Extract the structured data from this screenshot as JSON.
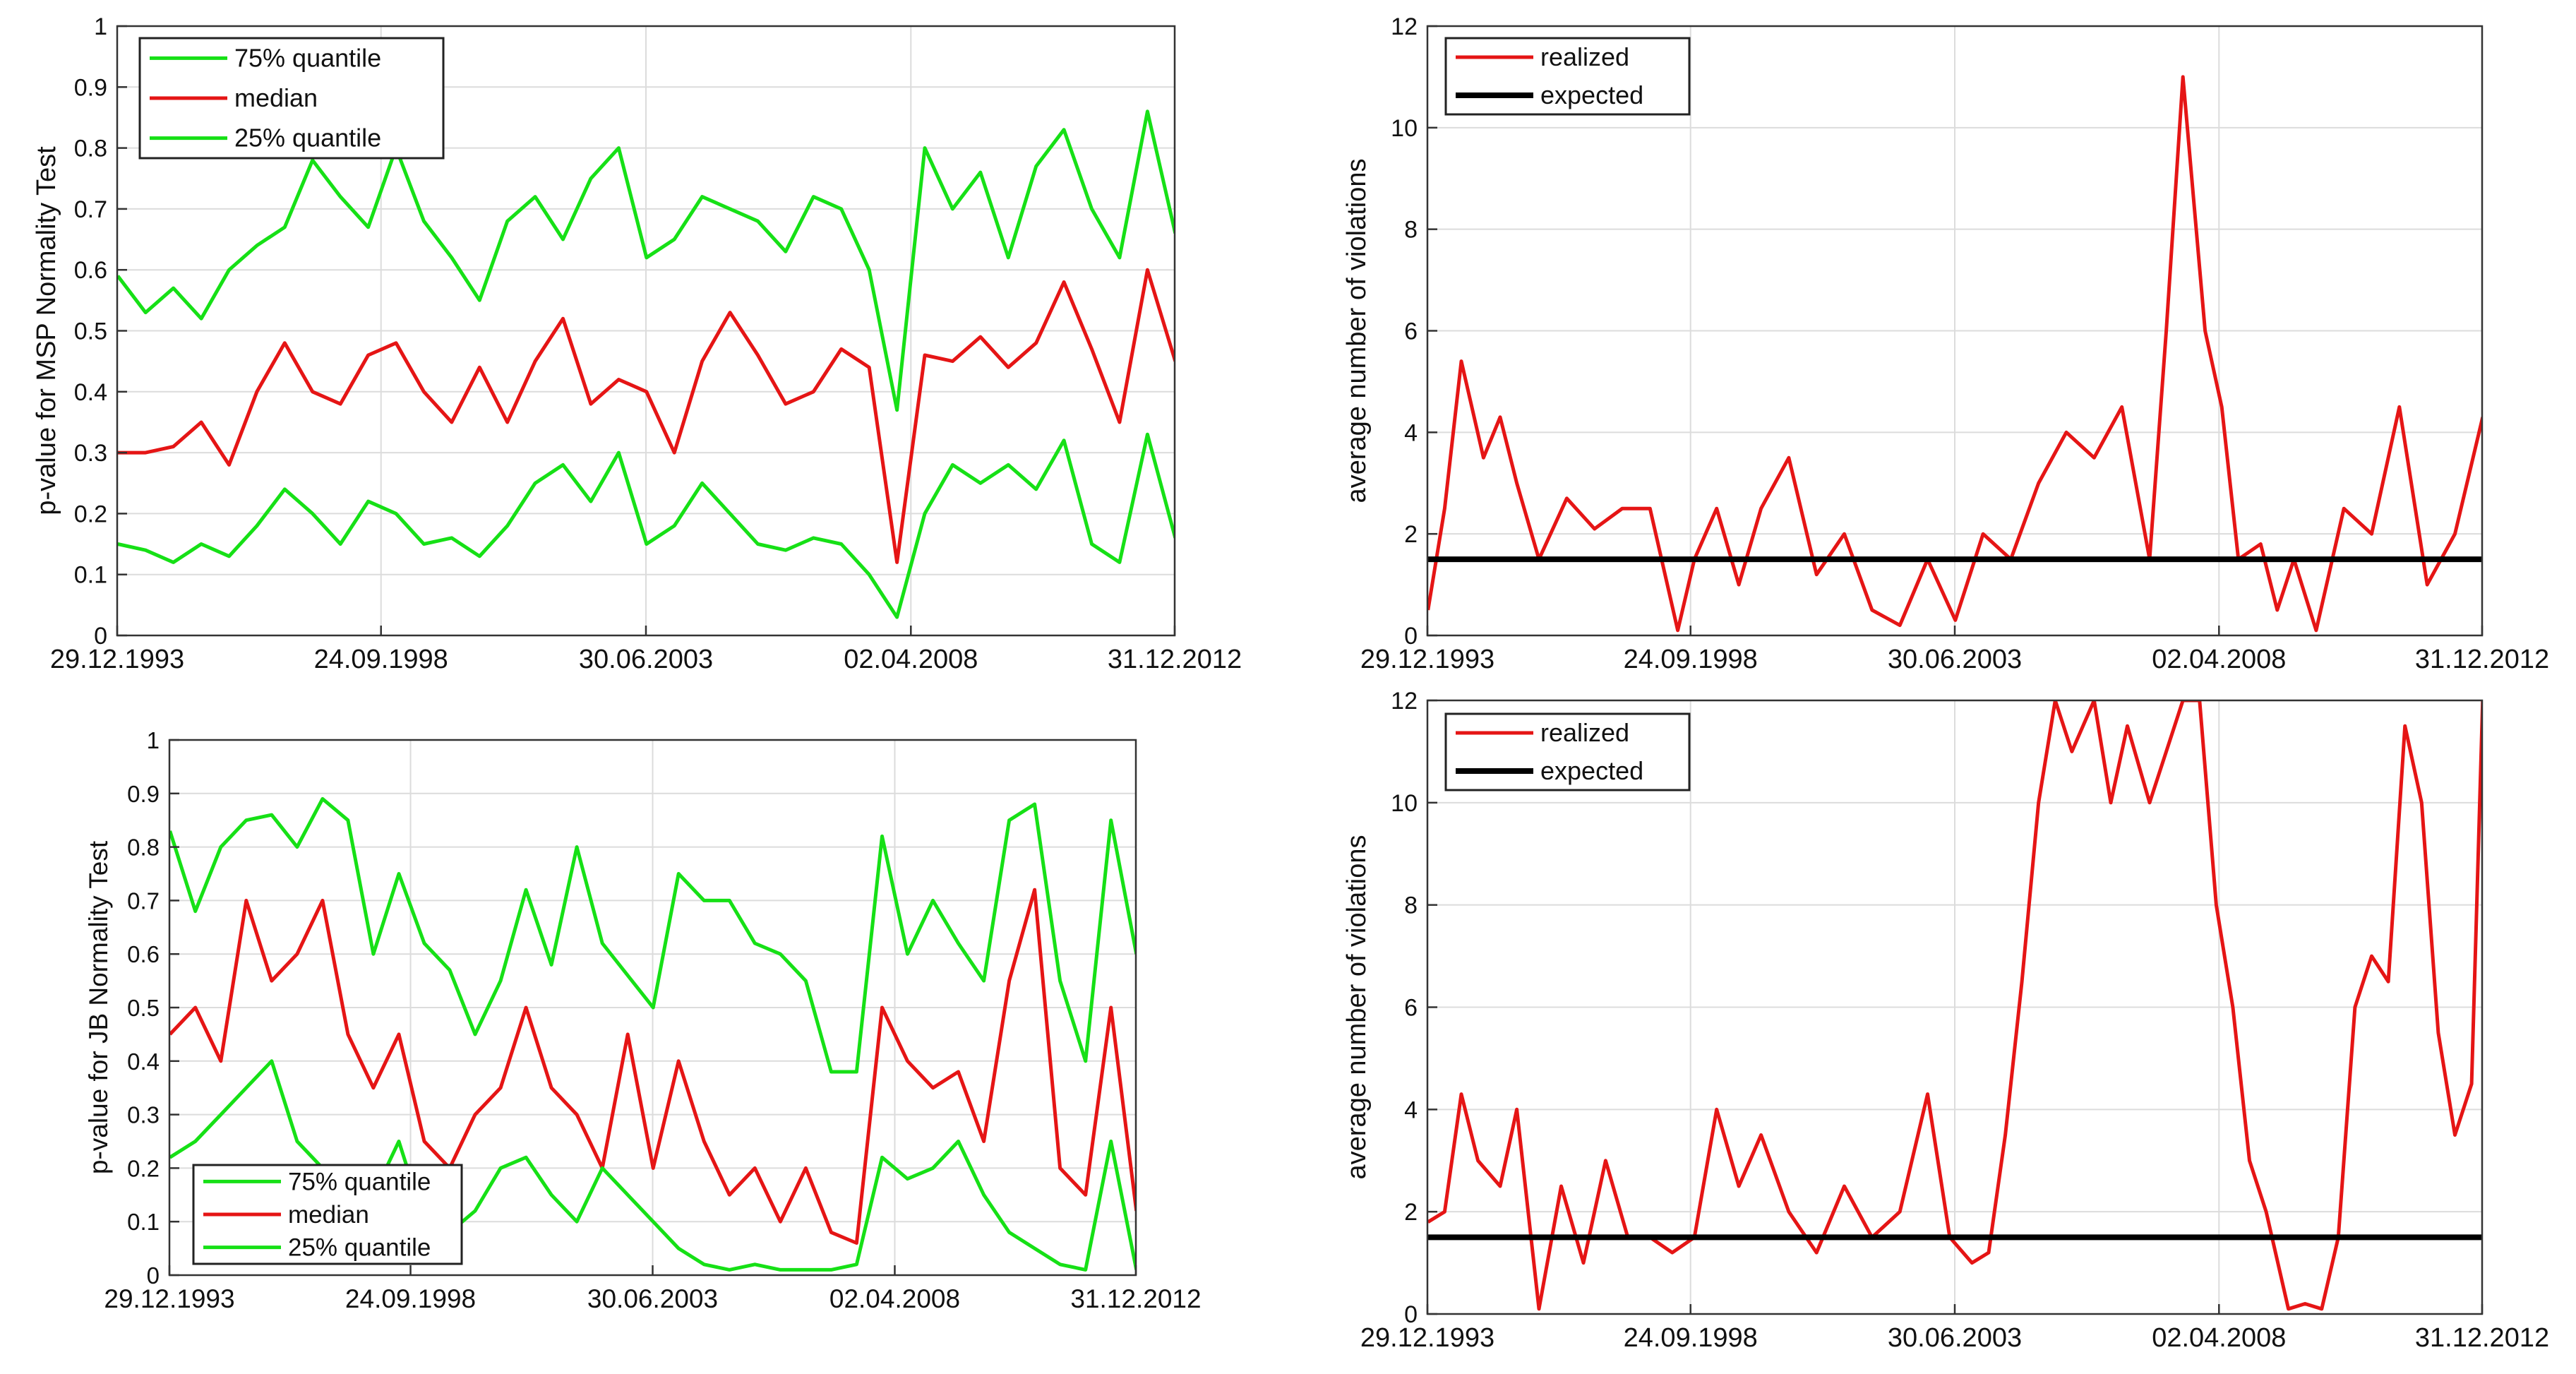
{
  "chart_data": [
    {
      "type": "line",
      "title": "",
      "xlabel": "",
      "ylabel": "p-value for MSP Normality Test",
      "ylim": [
        0,
        1
      ],
      "yticks": [
        0,
        0.1,
        0.2,
        0.3,
        0.4,
        0.5,
        0.6,
        0.7,
        0.8,
        0.9,
        1
      ],
      "ytick_labels": [
        "0",
        "0.1",
        "0.2",
        "0.3",
        "0.4",
        "0.5",
        "0.6",
        "0.7",
        "0.8",
        "0.9",
        "1"
      ],
      "xlim": [
        1993.99,
        2012.99
      ],
      "xticks": [
        1993.99,
        1998.73,
        2003.49,
        2008.25,
        2012.99
      ],
      "xtick_labels": [
        "29.12.1993",
        "24.09.1998",
        "30.06.2003",
        "02.04.2008",
        "31.12.2012"
      ],
      "legend_position": "top-left",
      "series": [
        {
          "name": "75% quantile",
          "color": "#16e016",
          "x": [
            1994.0,
            1994.5,
            1995.0,
            1995.5,
            1996.0,
            1996.5,
            1997.0,
            1997.5,
            1998.0,
            1998.5,
            1999.0,
            1999.5,
            2000.0,
            2000.5,
            2001.0,
            2001.5,
            2002.0,
            2002.5,
            2003.0,
            2003.5,
            2004.0,
            2004.5,
            2005.0,
            2005.5,
            2006.0,
            2006.5,
            2007.0,
            2007.5,
            2008.0,
            2008.5,
            2009.0,
            2009.5,
            2010.0,
            2010.5,
            2011.0,
            2011.5,
            2012.0,
            2012.5,
            2013.0
          ],
          "values": [
            0.59,
            0.53,
            0.57,
            0.52,
            0.6,
            0.64,
            0.67,
            0.78,
            0.72,
            0.67,
            0.8,
            0.68,
            0.62,
            0.55,
            0.68,
            0.72,
            0.65,
            0.75,
            0.8,
            0.62,
            0.65,
            0.72,
            0.7,
            0.68,
            0.63,
            0.72,
            0.7,
            0.6,
            0.37,
            0.8,
            0.7,
            0.76,
            0.62,
            0.77,
            0.83,
            0.7,
            0.62,
            0.86,
            0.66
          ]
        },
        {
          "name": "median",
          "color": "#e51515",
          "x": [
            1994.0,
            1994.5,
            1995.0,
            1995.5,
            1996.0,
            1996.5,
            1997.0,
            1997.5,
            1998.0,
            1998.5,
            1999.0,
            1999.5,
            2000.0,
            2000.5,
            2001.0,
            2001.5,
            2002.0,
            2002.5,
            2003.0,
            2003.5,
            2004.0,
            2004.5,
            2005.0,
            2005.5,
            2006.0,
            2006.5,
            2007.0,
            2007.5,
            2008.0,
            2008.5,
            2009.0,
            2009.5,
            2010.0,
            2010.5,
            2011.0,
            2011.5,
            2012.0,
            2012.5,
            2013.0
          ],
          "values": [
            0.3,
            0.3,
            0.31,
            0.35,
            0.28,
            0.4,
            0.48,
            0.4,
            0.38,
            0.46,
            0.48,
            0.4,
            0.35,
            0.44,
            0.35,
            0.45,
            0.52,
            0.38,
            0.42,
            0.4,
            0.3,
            0.45,
            0.53,
            0.46,
            0.38,
            0.4,
            0.47,
            0.44,
            0.12,
            0.46,
            0.45,
            0.49,
            0.44,
            0.48,
            0.58,
            0.47,
            0.35,
            0.6,
            0.45
          ]
        },
        {
          "name": "25% quantile",
          "color": "#16e016",
          "x": [
            1994.0,
            1994.5,
            1995.0,
            1995.5,
            1996.0,
            1996.5,
            1997.0,
            1997.5,
            1998.0,
            1998.5,
            1999.0,
            1999.5,
            2000.0,
            2000.5,
            2001.0,
            2001.5,
            2002.0,
            2002.5,
            2003.0,
            2003.5,
            2004.0,
            2004.5,
            2005.0,
            2005.5,
            2006.0,
            2006.5,
            2007.0,
            2007.5,
            2008.0,
            2008.5,
            2009.0,
            2009.5,
            2010.0,
            2010.5,
            2011.0,
            2011.5,
            2012.0,
            2012.5,
            2013.0
          ],
          "values": [
            0.15,
            0.14,
            0.12,
            0.15,
            0.13,
            0.18,
            0.24,
            0.2,
            0.15,
            0.22,
            0.2,
            0.15,
            0.16,
            0.13,
            0.18,
            0.25,
            0.28,
            0.22,
            0.3,
            0.15,
            0.18,
            0.25,
            0.2,
            0.15,
            0.14,
            0.16,
            0.15,
            0.1,
            0.03,
            0.2,
            0.28,
            0.25,
            0.28,
            0.24,
            0.32,
            0.15,
            0.12,
            0.33,
            0.16
          ]
        }
      ]
    },
    {
      "type": "line",
      "title": "",
      "xlabel": "",
      "ylabel": "average number of violations",
      "ylim": [
        0,
        12
      ],
      "yticks": [
        0,
        2,
        4,
        6,
        8,
        10,
        12
      ],
      "ytick_labels": [
        "0",
        "2",
        "4",
        "6",
        "8",
        "10",
        "12"
      ],
      "xlim": [
        1993.99,
        2012.99
      ],
      "xticks": [
        1993.99,
        1998.73,
        2003.49,
        2008.25,
        2012.99
      ],
      "xtick_labels": [
        "29.12.1993",
        "24.09.1998",
        "30.06.2003",
        "02.04.2008",
        "31.12.2012"
      ],
      "legend_position": "top-left",
      "series": [
        {
          "name": "realized",
          "color": "#e51515",
          "x": [
            1994.0,
            1994.3,
            1994.6,
            1995.0,
            1995.3,
            1995.6,
            1996.0,
            1996.5,
            1997.0,
            1997.5,
            1998.0,
            1998.5,
            1998.8,
            1999.2,
            1999.6,
            2000.0,
            2000.5,
            2001.0,
            2001.5,
            2002.0,
            2002.5,
            2003.0,
            2003.5,
            2004.0,
            2004.5,
            2005.0,
            2005.5,
            2006.0,
            2006.5,
            2007.0,
            2007.3,
            2007.6,
            2008.0,
            2008.3,
            2008.6,
            2009.0,
            2009.3,
            2009.6,
            2010.0,
            2010.5,
            2011.0,
            2011.5,
            2012.0,
            2012.5,
            2013.0
          ],
          "values": [
            0.5,
            2.5,
            5.4,
            3.5,
            4.3,
            3.0,
            1.5,
            2.7,
            2.1,
            2.5,
            2.5,
            0.1,
            1.5,
            2.5,
            1.0,
            2.5,
            3.5,
            1.2,
            2.0,
            0.5,
            0.2,
            1.5,
            0.3,
            2.0,
            1.5,
            3.0,
            4.0,
            3.5,
            4.5,
            1.5,
            6.0,
            11.0,
            6.0,
            4.5,
            1.5,
            1.8,
            0.5,
            1.5,
            0.1,
            2.5,
            2.0,
            4.5,
            1.0,
            2.0,
            4.3
          ]
        },
        {
          "name": "expected",
          "color": "#000000",
          "x": [
            1994.0,
            2013.0
          ],
          "values": [
            1.5,
            1.5
          ]
        }
      ]
    },
    {
      "type": "line",
      "title": "",
      "xlabel": "",
      "ylabel": "p-value for JB Normality Test",
      "ylim": [
        0,
        1
      ],
      "yticks": [
        0,
        0.1,
        0.2,
        0.3,
        0.4,
        0.5,
        0.6,
        0.7,
        0.8,
        0.9,
        1
      ],
      "ytick_labels": [
        "0",
        "0.1",
        "0.2",
        "0.3",
        "0.4",
        "0.5",
        "0.6",
        "0.7",
        "0.8",
        "0.9",
        "1"
      ],
      "xlim": [
        1993.99,
        2012.99
      ],
      "xticks": [
        1993.99,
        1998.73,
        2003.49,
        2008.25,
        2012.99
      ],
      "xtick_labels": [
        "29.12.1993",
        "24.09.1998",
        "30.06.2003",
        "02.04.2008",
        "31.12.2012"
      ],
      "legend_position": "bottom-left",
      "series": [
        {
          "name": "75% quantile",
          "color": "#16e016",
          "x": [
            1994.0,
            1994.5,
            1995.0,
            1995.5,
            1996.0,
            1996.5,
            1997.0,
            1997.5,
            1998.0,
            1998.5,
            1999.0,
            1999.5,
            2000.0,
            2000.5,
            2001.0,
            2001.5,
            2002.0,
            2002.5,
            2003.0,
            2003.5,
            2004.0,
            2004.5,
            2005.0,
            2005.5,
            2006.0,
            2006.5,
            2007.0,
            2007.5,
            2008.0,
            2008.5,
            2009.0,
            2009.5,
            2010.0,
            2010.5,
            2011.0,
            2011.5,
            2012.0,
            2012.5,
            2013.0
          ],
          "values": [
            0.83,
            0.68,
            0.8,
            0.85,
            0.86,
            0.8,
            0.89,
            0.85,
            0.6,
            0.75,
            0.62,
            0.57,
            0.45,
            0.55,
            0.72,
            0.58,
            0.8,
            0.62,
            0.56,
            0.5,
            0.75,
            0.7,
            0.7,
            0.62,
            0.6,
            0.55,
            0.38,
            0.38,
            0.82,
            0.6,
            0.7,
            0.62,
            0.55,
            0.85,
            0.88,
            0.55,
            0.4,
            0.85,
            0.6
          ]
        },
        {
          "name": "median",
          "color": "#e51515",
          "x": [
            1994.0,
            1994.5,
            1995.0,
            1995.5,
            1996.0,
            1996.5,
            1997.0,
            1997.5,
            1998.0,
            1998.5,
            1999.0,
            1999.5,
            2000.0,
            2000.5,
            2001.0,
            2001.5,
            2002.0,
            2002.5,
            2003.0,
            2003.5,
            2004.0,
            2004.5,
            2005.0,
            2005.5,
            2006.0,
            2006.5,
            2007.0,
            2007.5,
            2008.0,
            2008.5,
            2009.0,
            2009.5,
            2010.0,
            2010.5,
            2011.0,
            2011.5,
            2012.0,
            2012.5,
            2013.0
          ],
          "values": [
            0.45,
            0.5,
            0.4,
            0.7,
            0.55,
            0.6,
            0.7,
            0.45,
            0.35,
            0.45,
            0.25,
            0.2,
            0.3,
            0.35,
            0.5,
            0.35,
            0.3,
            0.2,
            0.45,
            0.2,
            0.4,
            0.25,
            0.15,
            0.2,
            0.1,
            0.2,
            0.08,
            0.06,
            0.5,
            0.4,
            0.35,
            0.38,
            0.25,
            0.55,
            0.72,
            0.2,
            0.15,
            0.5,
            0.12
          ]
        },
        {
          "name": "25% quantile",
          "color": "#16e016",
          "x": [
            1994.0,
            1994.5,
            1995.0,
            1995.5,
            1996.0,
            1996.5,
            1997.0,
            1997.5,
            1998.0,
            1998.5,
            1999.0,
            1999.5,
            2000.0,
            2000.5,
            2001.0,
            2001.5,
            2002.0,
            2002.5,
            2003.0,
            2003.5,
            2004.0,
            2004.5,
            2005.0,
            2005.5,
            2006.0,
            2006.5,
            2007.0,
            2007.5,
            2008.0,
            2008.5,
            2009.0,
            2009.5,
            2010.0,
            2010.5,
            2011.0,
            2011.5,
            2012.0,
            2012.5,
            2013.0
          ],
          "values": [
            0.22,
            0.25,
            0.3,
            0.35,
            0.4,
            0.25,
            0.2,
            0.2,
            0.15,
            0.25,
            0.1,
            0.08,
            0.12,
            0.2,
            0.22,
            0.15,
            0.1,
            0.2,
            0.15,
            0.1,
            0.05,
            0.02,
            0.01,
            0.02,
            0.01,
            0.01,
            0.01,
            0.02,
            0.22,
            0.18,
            0.2,
            0.25,
            0.15,
            0.08,
            0.05,
            0.02,
            0.01,
            0.25,
            0.01
          ]
        }
      ]
    },
    {
      "type": "line",
      "title": "",
      "xlabel": "",
      "ylabel": "average number of violations",
      "ylim": [
        0,
        12
      ],
      "yticks": [
        0,
        2,
        4,
        6,
        8,
        10,
        12
      ],
      "ytick_labels": [
        "0",
        "2",
        "4",
        "6",
        "8",
        "10",
        "12"
      ],
      "xlim": [
        1993.99,
        2012.99
      ],
      "xticks": [
        1993.99,
        1998.73,
        2003.49,
        2008.25,
        2012.99
      ],
      "xtick_labels": [
        "29.12.1993",
        "24.09.1998",
        "30.06.2003",
        "02.04.2008",
        "31.12.2012"
      ],
      "legend_position": "top-left",
      "series": [
        {
          "name": "realized",
          "color": "#e51515",
          "x": [
            1994.0,
            1994.3,
            1994.6,
            1994.9,
            1995.3,
            1995.6,
            1996.0,
            1996.4,
            1996.8,
            1997.2,
            1997.6,
            1998.0,
            1998.4,
            1998.8,
            1999.2,
            1999.6,
            2000.0,
            2000.5,
            2001.0,
            2001.5,
            2002.0,
            2002.5,
            2003.0,
            2003.4,
            2003.8,
            2004.1,
            2004.4,
            2004.7,
            2005.0,
            2005.3,
            2005.6,
            2006.0,
            2006.3,
            2006.6,
            2007.0,
            2007.3,
            2007.6,
            2007.9,
            2008.2,
            2008.5,
            2008.8,
            2009.1,
            2009.5,
            2009.8,
            2010.1,
            2010.4,
            2010.7,
            2011.0,
            2011.3,
            2011.6,
            2011.9,
            2012.2,
            2012.5,
            2012.8,
            2013.0
          ],
          "values": [
            1.8,
            2.0,
            4.3,
            3.0,
            2.5,
            4.0,
            0.1,
            2.5,
            1.0,
            3.0,
            1.5,
            1.5,
            1.2,
            1.5,
            4.0,
            2.5,
            3.5,
            2.0,
            1.2,
            2.5,
            1.5,
            2.0,
            4.3,
            1.5,
            1.0,
            1.2,
            3.5,
            6.5,
            10.0,
            12.0,
            11.0,
            12.0,
            10.0,
            11.5,
            10.0,
            11.0,
            12.0,
            12.0,
            8.0,
            6.0,
            3.0,
            2.0,
            0.1,
            0.2,
            0.1,
            1.5,
            6.0,
            7.0,
            6.5,
            11.5,
            10.0,
            5.5,
            3.5,
            4.5,
            12.0
          ]
        },
        {
          "name": "expected",
          "color": "#000000",
          "x": [
            1994.0,
            2013.0
          ],
          "values": [
            1.5,
            1.5
          ]
        }
      ]
    }
  ]
}
